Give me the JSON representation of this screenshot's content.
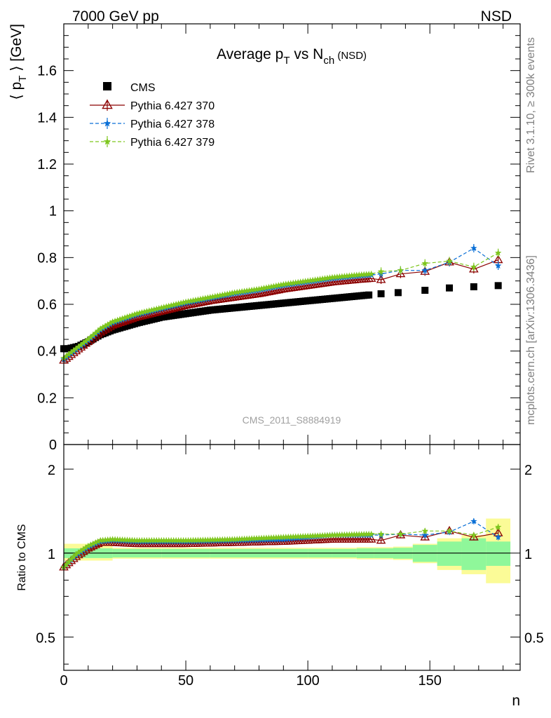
{
  "header": {
    "left": "7000 GeV pp",
    "right": "NSD"
  },
  "side_labels": {
    "rivet": "Rivet 3.1.10, ≥ 300k events",
    "mcplots": "mcplots.cern.ch [arXiv:1306.3436]"
  },
  "watermark": "CMS_2011_S8884919",
  "colors": {
    "cms": "#000000",
    "p370": "#8b0000",
    "p378": "#0a6fd6",
    "p379": "#7ec61e",
    "band_inner": "#8ff79a",
    "band_outer": "#fbfb97"
  },
  "chart_data": [
    {
      "type": "scatter",
      "title": {
        "pre": "Average p",
        "sub1": "T",
        "mid": " vs N",
        "sub2": "ch",
        "post": " (NSD)"
      },
      "ylabel": {
        "open": "⟨ p",
        "sub": "T",
        "close": " ⟩ [GeV]"
      },
      "xlim": [
        0,
        187
      ],
      "ylim": [
        0,
        1.8
      ],
      "yticks": [
        0,
        0.2,
        0.4,
        0.6,
        0.8,
        1,
        1.2,
        1.4,
        1.6
      ],
      "ytick_labels": [
        "0",
        "0.2",
        "0.4",
        "0.6",
        "0.8",
        "1",
        "1.2",
        "1.4",
        "1.6"
      ],
      "legend_position": "top-left",
      "legend": [
        "CMS",
        "Pythia 6.427 370",
        "Pythia 6.427 378",
        "Pythia 6.427 379"
      ],
      "cms_knots": [
        [
          0,
          0.41
        ],
        [
          2,
          0.41
        ],
        [
          6,
          0.42
        ],
        [
          10,
          0.44
        ],
        [
          15,
          0.47
        ],
        [
          20,
          0.49
        ],
        [
          30,
          0.52
        ],
        [
          40,
          0.545
        ],
        [
          50,
          0.56
        ],
        [
          60,
          0.575
        ],
        [
          80,
          0.595
        ],
        [
          100,
          0.615
        ],
        [
          120,
          0.635
        ],
        [
          125,
          0.64
        ]
      ],
      "cms_tail_x": [
        130,
        137,
        148,
        158,
        168,
        178
      ],
      "cms_tail_y": [
        0.645,
        0.65,
        0.66,
        0.67,
        0.675,
        0.68
      ],
      "series": [
        {
          "name": "Pythia 6.427 370",
          "key": "p370",
          "knots": [
            [
              0,
              0.36
            ],
            [
              5,
              0.4
            ],
            [
              10,
              0.44
            ],
            [
              15,
              0.48
            ],
            [
              20,
              0.51
            ],
            [
              30,
              0.545
            ],
            [
              40,
              0.57
            ],
            [
              50,
              0.595
            ],
            [
              60,
              0.615
            ],
            [
              70,
              0.63
            ],
            [
              80,
              0.645
            ],
            [
              90,
              0.665
            ],
            [
              100,
              0.68
            ],
            [
              110,
              0.695
            ],
            [
              120,
              0.705
            ],
            [
              126,
              0.71
            ]
          ],
          "tail_x": [
            130,
            138,
            148,
            158,
            168,
            178
          ],
          "tail_y": [
            0.705,
            0.73,
            0.74,
            0.78,
            0.75,
            0.79
          ]
        },
        {
          "name": "Pythia 6.427 378",
          "key": "p378",
          "knots": [
            [
              0,
              0.365
            ],
            [
              5,
              0.405
            ],
            [
              10,
              0.445
            ],
            [
              15,
              0.49
            ],
            [
              20,
              0.52
            ],
            [
              30,
              0.555
            ],
            [
              40,
              0.58
            ],
            [
              50,
              0.605
            ],
            [
              60,
              0.625
            ],
            [
              70,
              0.645
            ],
            [
              80,
              0.66
            ],
            [
              90,
              0.68
            ],
            [
              100,
              0.695
            ],
            [
              110,
              0.71
            ],
            [
              120,
              0.72
            ],
            [
              126,
              0.725
            ]
          ],
          "tail_x": [
            130,
            138,
            148,
            158,
            168,
            178
          ],
          "tail_y": [
            0.73,
            0.745,
            0.745,
            0.78,
            0.84,
            0.765
          ]
        },
        {
          "name": "Pythia 6.427 379",
          "key": "p379",
          "knots": [
            [
              0,
              0.37
            ],
            [
              5,
              0.41
            ],
            [
              10,
              0.45
            ],
            [
              15,
              0.495
            ],
            [
              20,
              0.525
            ],
            [
              30,
              0.56
            ],
            [
              40,
              0.585
            ],
            [
              50,
              0.61
            ],
            [
              60,
              0.63
            ],
            [
              70,
              0.65
            ],
            [
              80,
              0.665
            ],
            [
              90,
              0.685
            ],
            [
              100,
              0.7
            ],
            [
              110,
              0.715
            ],
            [
              120,
              0.725
            ],
            [
              126,
              0.73
            ]
          ],
          "tail_x": [
            130,
            138,
            148,
            158,
            168,
            178
          ],
          "tail_y": [
            0.74,
            0.745,
            0.775,
            0.785,
            0.76,
            0.82
          ]
        }
      ]
    },
    {
      "type": "line",
      "ylabel": "Ratio to CMS",
      "xlabel": "n",
      "xlim": [
        0,
        187
      ],
      "ylim": [
        0.38,
        2.45
      ],
      "yscale": "log",
      "xticks": [
        0,
        50,
        100,
        150
      ],
      "xtick_labels": [
        "0",
        "50",
        "100",
        "150"
      ],
      "yticks": [
        0.5,
        1,
        2
      ],
      "ytick_labels": [
        "0.5",
        "1",
        "2"
      ],
      "band_edges": [
        0,
        20,
        40,
        60,
        80,
        100,
        110,
        120,
        127,
        135,
        143,
        153,
        163,
        173,
        183
      ],
      "band_inner_lo": [
        0.96,
        0.965,
        0.965,
        0.965,
        0.965,
        0.965,
        0.965,
        0.96,
        0.96,
        0.955,
        0.93,
        0.9,
        0.87,
        0.9
      ],
      "band_inner_hi": [
        1.04,
        1.035,
        1.035,
        1.035,
        1.035,
        1.035,
        1.035,
        1.04,
        1.04,
        1.045,
        1.07,
        1.1,
        1.13,
        1.1
      ],
      "band_outer_lo": [
        0.94,
        0.955,
        0.955,
        0.955,
        0.955,
        0.955,
        0.955,
        0.95,
        0.95,
        0.945,
        0.92,
        0.87,
        0.84,
        0.78
      ],
      "band_outer_hi": [
        1.08,
        1.045,
        1.045,
        1.045,
        1.045,
        1.045,
        1.045,
        1.05,
        1.05,
        1.055,
        1.08,
        1.13,
        1.16,
        1.33
      ],
      "ratio_series": [
        {
          "name": "Pythia 6.427 370",
          "key": "p370",
          "knots": [
            [
              0,
              0.89
            ],
            [
              5,
              0.97
            ],
            [
              10,
              1.04
            ],
            [
              15,
              1.09
            ],
            [
              20,
              1.09
            ],
            [
              30,
              1.08
            ],
            [
              50,
              1.08
            ],
            [
              70,
              1.09
            ],
            [
              90,
              1.1
            ],
            [
              110,
              1.12
            ],
            [
              126,
              1.12
            ]
          ],
          "tail_x": [
            130,
            138,
            148,
            158,
            168,
            178
          ],
          "tail_y": [
            1.11,
            1.16,
            1.14,
            1.2,
            1.14,
            1.18
          ]
        },
        {
          "name": "Pythia 6.427 378",
          "key": "p378",
          "knots": [
            [
              0,
              0.89
            ],
            [
              5,
              0.98
            ],
            [
              10,
              1.05
            ],
            [
              15,
              1.1
            ],
            [
              20,
              1.11
            ],
            [
              30,
              1.1
            ],
            [
              50,
              1.1
            ],
            [
              70,
              1.11
            ],
            [
              90,
              1.12
            ],
            [
              110,
              1.16
            ],
            [
              126,
              1.16
            ]
          ],
          "tail_x": [
            130,
            138,
            148,
            158,
            168,
            178
          ],
          "tail_y": [
            1.16,
            1.17,
            1.16,
            1.19,
            1.3,
            1.14
          ]
        },
        {
          "name": "Pythia 6.427 379",
          "key": "p379",
          "knots": [
            [
              0,
              0.89
            ],
            [
              5,
              0.99
            ],
            [
              10,
              1.06
            ],
            [
              15,
              1.11
            ],
            [
              20,
              1.12
            ],
            [
              30,
              1.11
            ],
            [
              50,
              1.11
            ],
            [
              70,
              1.12
            ],
            [
              90,
              1.14
            ],
            [
              110,
              1.16
            ],
            [
              126,
              1.17
            ]
          ],
          "tail_x": [
            130,
            138,
            148,
            158,
            168,
            178
          ],
          "tail_y": [
            1.17,
            1.17,
            1.2,
            1.2,
            1.16,
            1.24
          ]
        }
      ]
    }
  ]
}
